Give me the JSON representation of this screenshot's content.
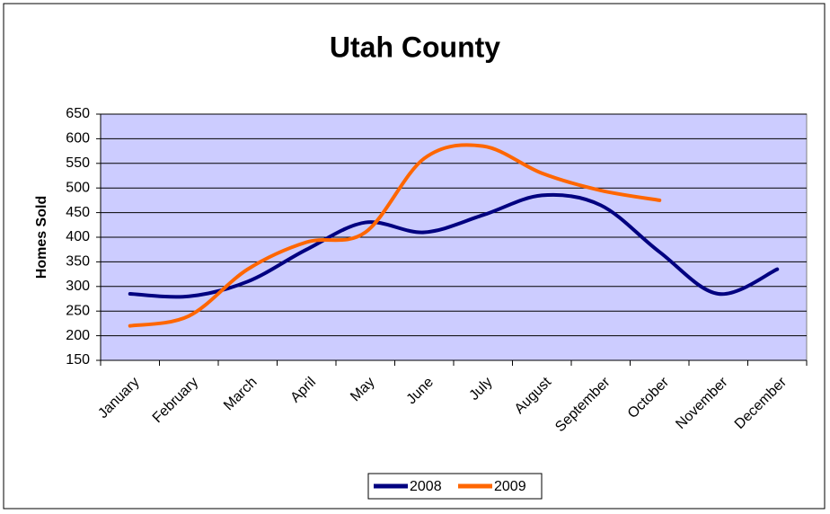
{
  "chart_data": {
    "type": "line",
    "title": "Utah County",
    "y_label": "Homes Sold",
    "categories": [
      "January",
      "February",
      "March",
      "April",
      "May",
      "June",
      "July",
      "August",
      "September",
      "October",
      "November",
      "December"
    ],
    "series": [
      {
        "name": "2008",
        "color": "#000080",
        "values": [
          285,
          280,
          310,
          375,
          430,
          410,
          445,
          485,
          465,
          370,
          285,
          335
        ]
      },
      {
        "name": "2009",
        "color": "#ff6600",
        "values": [
          220,
          240,
          335,
          390,
          410,
          560,
          585,
          530,
          495,
          475,
          null,
          null
        ]
      }
    ],
    "ylim": [
      150,
      650
    ],
    "yticks": [
      150,
      200,
      250,
      300,
      350,
      400,
      450,
      500,
      550,
      600,
      650
    ],
    "grid": true,
    "legend": "bottom"
  }
}
